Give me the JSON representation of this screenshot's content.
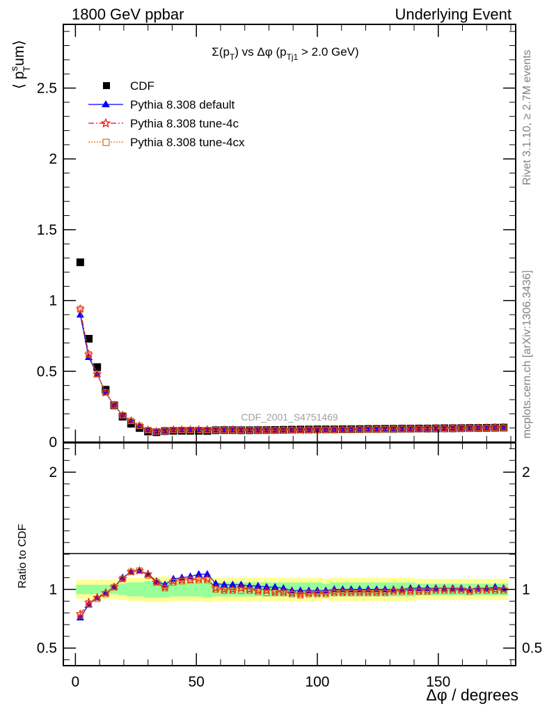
{
  "header": {
    "left": "1800 GeV ppbar",
    "right": "Underlying Event"
  },
  "title": "Σ(p_T) vs Δφ (p_Tj1 > 2.0 GeV)",
  "watermark": "CDF_2001_S4751469",
  "side_top": "Rivet 3.1.10, ≥ 2.7M events",
  "side_bottom": "mcplots.cern.ch [arXiv:1306.3436]",
  "ylabel_main": "⟨ p_T^s um⟩",
  "ylabel_ratio": "Ratio to CDF",
  "xlabel": "Δφ / degrees",
  "colors": {
    "cdf": "#000000",
    "default": "#0000ff",
    "tune4c": "#ff0000",
    "tune4cx": "#d2691e",
    "band_inner": "#99ff99",
    "band_outer": "#ffff99"
  },
  "chart_data": [
    {
      "type": "scatter",
      "panel": "main",
      "xlim": [
        -5,
        182
      ],
      "ylim": [
        0,
        2.95
      ],
      "yticks": [
        0,
        0.5,
        1,
        1.5,
        2,
        2.5
      ],
      "ytick_labels": [
        "0",
        "0.5",
        "1",
        "1.5",
        "2",
        "2.5"
      ],
      "x": [
        2,
        5.5,
        9,
        12.5,
        16,
        19.5,
        23,
        26.5,
        30,
        33.5,
        37,
        40.5,
        44,
        47.5,
        51,
        54.5,
        58,
        61.5,
        65,
        68.5,
        72,
        75.5,
        79,
        82.5,
        86,
        89.5,
        93,
        96.5,
        100,
        103.5,
        107,
        110.5,
        114,
        117.5,
        121,
        124.5,
        128,
        131.5,
        135,
        138.5,
        142,
        145.5,
        149,
        152.5,
        156,
        159.5,
        163,
        166.5,
        170,
        173.5,
        177
      ],
      "series": [
        {
          "name": "CDF",
          "marker": "square",
          "values": [
            1.27,
            0.73,
            0.53,
            0.37,
            0.26,
            0.18,
            0.13,
            0.1,
            0.075,
            0.07,
            0.078,
            0.08,
            0.08,
            0.08,
            0.08,
            0.079,
            0.084,
            0.085,
            0.085,
            0.084,
            0.084,
            0.085,
            0.085,
            0.086,
            0.087,
            0.088,
            0.089,
            0.089,
            0.09,
            0.09,
            0.09,
            0.091,
            0.091,
            0.092,
            0.093,
            0.093,
            0.094,
            0.094,
            0.095,
            0.095,
            0.096,
            0.096,
            0.097,
            0.098,
            0.098,
            0.099,
            0.1,
            0.1,
            0.101,
            0.102,
            0.103
          ]
        },
        {
          "name": "Pythia 8.308 default",
          "marker": "triangle",
          "values": [
            0.9,
            0.6,
            0.48,
            0.35,
            0.26,
            0.19,
            0.15,
            0.115,
            0.085,
            0.075,
            0.08,
            0.087,
            0.088,
            0.088,
            0.09,
            0.089,
            0.088,
            0.088,
            0.088,
            0.087,
            0.087,
            0.088,
            0.087,
            0.087,
            0.087,
            0.087,
            0.088,
            0.088,
            0.089,
            0.089,
            0.09,
            0.091,
            0.091,
            0.092,
            0.093,
            0.093,
            0.094,
            0.094,
            0.095,
            0.096,
            0.097,
            0.097,
            0.098,
            0.099,
            0.099,
            0.1,
            0.1,
            0.101,
            0.102,
            0.104,
            0.104
          ]
        },
        {
          "name": "Pythia 8.308 tune-4c",
          "marker": "star",
          "values": [
            0.94,
            0.62,
            0.48,
            0.35,
            0.26,
            0.19,
            0.15,
            0.115,
            0.085,
            0.074,
            0.078,
            0.086,
            0.086,
            0.086,
            0.087,
            0.086,
            0.085,
            0.085,
            0.085,
            0.085,
            0.084,
            0.084,
            0.084,
            0.084,
            0.085,
            0.085,
            0.085,
            0.086,
            0.087,
            0.087,
            0.088,
            0.089,
            0.089,
            0.09,
            0.091,
            0.091,
            0.092,
            0.093,
            0.094,
            0.094,
            0.095,
            0.096,
            0.097,
            0.097,
            0.098,
            0.099,
            0.099,
            0.1,
            0.101,
            0.102,
            0.103
          ]
        },
        {
          "name": "Pythia 8.308 tune-4cx",
          "marker": "open-square",
          "values": [
            0.94,
            0.62,
            0.48,
            0.35,
            0.26,
            0.19,
            0.15,
            0.115,
            0.085,
            0.074,
            0.078,
            0.085,
            0.086,
            0.086,
            0.086,
            0.085,
            0.085,
            0.085,
            0.085,
            0.084,
            0.084,
            0.084,
            0.083,
            0.083,
            0.084,
            0.084,
            0.084,
            0.085,
            0.086,
            0.086,
            0.087,
            0.088,
            0.088,
            0.089,
            0.09,
            0.09,
            0.091,
            0.092,
            0.093,
            0.093,
            0.094,
            0.095,
            0.096,
            0.096,
            0.097,
            0.098,
            0.098,
            0.099,
            0.1,
            0.101,
            0.102
          ]
        }
      ]
    },
    {
      "type": "scatter",
      "panel": "ratio",
      "ylabel": "Ratio to CDF",
      "xlabel": "Δφ / degrees",
      "xlim": [
        -5,
        182
      ],
      "ylim": [
        0.35,
        2.25
      ],
      "yticks": [
        0.5,
        1,
        2
      ],
      "ytick_labels": [
        "0.5",
        "1",
        "2"
      ],
      "xticks": [
        0,
        50,
        100,
        150
      ],
      "xtick_labels": [
        "0",
        "50",
        "100",
        "150"
      ],
      "x": [
        2,
        5.5,
        9,
        12.5,
        16,
        19.5,
        23,
        26.5,
        30,
        33.5,
        37,
        40.5,
        44,
        47.5,
        51,
        54.5,
        58,
        61.5,
        65,
        68.5,
        72,
        75.5,
        79,
        82.5,
        86,
        89.5,
        93,
        96.5,
        100,
        103.5,
        107,
        110.5,
        114,
        117.5,
        121,
        124.5,
        128,
        131.5,
        135,
        138.5,
        142,
        145.5,
        149,
        152.5,
        156,
        159.5,
        163,
        166.5,
        170,
        173.5,
        177
      ],
      "band_inner": [
        0.04,
        0.04,
        0.04,
        0.04,
        0.04,
        0.05,
        0.06,
        0.06,
        0.07,
        0.07,
        0.07,
        0.06,
        0.06,
        0.06,
        0.06,
        0.07,
        0.06,
        0.06,
        0.06,
        0.06,
        0.06,
        0.06,
        0.06,
        0.06,
        0.06,
        0.06,
        0.06,
        0.06,
        0.06,
        0.05,
        0.06,
        0.06,
        0.06,
        0.06,
        0.06,
        0.06,
        0.06,
        0.06,
        0.06,
        0.06,
        0.05,
        0.05,
        0.05,
        0.05,
        0.05,
        0.05,
        0.05,
        0.05,
        0.05,
        0.05,
        0.05
      ],
      "band_outer": [
        0.08,
        0.08,
        0.08,
        0.08,
        0.08,
        0.09,
        0.1,
        0.1,
        0.11,
        0.11,
        0.11,
        0.1,
        0.1,
        0.1,
        0.1,
        0.11,
        0.1,
        0.1,
        0.1,
        0.1,
        0.1,
        0.1,
        0.1,
        0.1,
        0.1,
        0.1,
        0.1,
        0.1,
        0.1,
        0.09,
        0.1,
        0.1,
        0.1,
        0.1,
        0.1,
        0.1,
        0.1,
        0.1,
        0.1,
        0.1,
        0.09,
        0.09,
        0.09,
        0.09,
        0.09,
        0.09,
        0.09,
        0.09,
        0.09,
        0.09,
        0.09
      ],
      "series": [
        {
          "name": "Pythia 8.308 default",
          "marker": "triangle",
          "values": [
            0.76,
            0.87,
            0.93,
            0.97,
            1.02,
            1.1,
            1.15,
            1.16,
            1.13,
            1.07,
            1.04,
            1.09,
            1.1,
            1.11,
            1.13,
            1.13,
            1.05,
            1.04,
            1.04,
            1.04,
            1.03,
            1.03,
            1.02,
            1.02,
            1.01,
            0.99,
            0.99,
            0.99,
            0.99,
            0.99,
            1.0,
            1.0,
            1.0,
            1.0,
            1.0,
            1.0,
            1.0,
            1.0,
            1.0,
            1.01,
            1.01,
            1.01,
            1.01,
            1.01,
            1.01,
            1.01,
            1.0,
            1.01,
            1.01,
            1.02,
            1.01
          ]
        },
        {
          "name": "Pythia 8.308 tune-4c",
          "marker": "star",
          "values": [
            0.79,
            0.89,
            0.93,
            0.97,
            1.02,
            1.09,
            1.15,
            1.16,
            1.13,
            1.06,
            1.02,
            1.07,
            1.08,
            1.08,
            1.09,
            1.09,
            1.01,
            1.0,
            1.0,
            1.01,
            1.0,
            0.99,
            0.99,
            0.98,
            0.98,
            0.97,
            0.96,
            0.97,
            0.97,
            0.97,
            0.98,
            0.98,
            0.98,
            0.98,
            0.98,
            0.98,
            0.98,
            0.99,
            0.99,
            0.99,
            0.99,
            0.99,
            1.0,
            1.0,
            1.0,
            1.0,
            0.99,
            1.0,
            1.0,
            1.0,
            1.0
          ]
        },
        {
          "name": "Pythia 8.308 tune-4cx",
          "marker": "open-square",
          "values": [
            0.78,
            0.88,
            0.92,
            0.96,
            1.02,
            1.09,
            1.15,
            1.16,
            1.12,
            1.06,
            1.01,
            1.06,
            1.07,
            1.08,
            1.08,
            1.08,
            1.0,
            0.99,
            0.99,
            0.99,
            0.99,
            0.98,
            0.97,
            0.97,
            0.97,
            0.96,
            0.95,
            0.96,
            0.96,
            0.96,
            0.97,
            0.97,
            0.97,
            0.97,
            0.97,
            0.97,
            0.97,
            0.98,
            0.98,
            0.98,
            0.98,
            0.98,
            0.99,
            0.99,
            0.99,
            0.99,
            0.98,
            0.99,
            0.99,
            0.99,
            0.99
          ]
        }
      ]
    }
  ]
}
